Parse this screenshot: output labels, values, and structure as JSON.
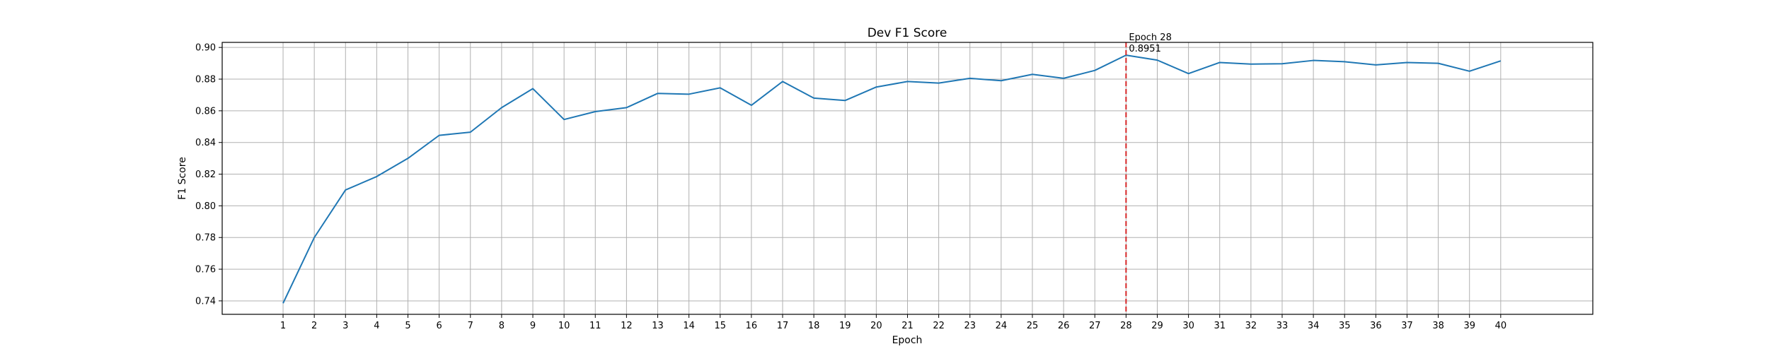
{
  "chart_data": {
    "type": "line",
    "title": "Dev F1 Score",
    "xlabel": "Epoch",
    "ylabel": "F1 Score",
    "x": [
      1,
      2,
      3,
      4,
      5,
      6,
      7,
      8,
      9,
      10,
      11,
      12,
      13,
      14,
      15,
      16,
      17,
      18,
      19,
      20,
      21,
      22,
      23,
      24,
      25,
      26,
      27,
      28,
      29,
      30,
      31,
      32,
      33,
      34,
      35,
      36,
      37,
      38,
      39,
      40
    ],
    "series": [
      {
        "color": "#1f77b4",
        "values": [
          0.7385,
          0.78,
          0.81,
          0.8185,
          0.83,
          0.8445,
          0.8465,
          0.862,
          0.874,
          0.8545,
          0.8595,
          0.862,
          0.871,
          0.8705,
          0.8745,
          0.8635,
          0.8785,
          0.868,
          0.8665,
          0.875,
          0.8785,
          0.8775,
          0.8805,
          0.879,
          0.883,
          0.8805,
          0.8855,
          0.8951,
          0.892,
          0.8835,
          0.8905,
          0.8895,
          0.8897,
          0.8918,
          0.891,
          0.889,
          0.8905,
          0.89,
          0.885,
          0.8915
        ]
      }
    ],
    "xlim": [
      -0.95,
      42.95
    ],
    "ylim": [
      0.7315,
      0.9032
    ],
    "yticks": [
      "0.74",
      "0.76",
      "0.78",
      "0.80",
      "0.82",
      "0.84",
      "0.86",
      "0.88",
      "0.90"
    ],
    "ytick_values": [
      0.74,
      0.76,
      0.78,
      0.8,
      0.82,
      0.84,
      0.86,
      0.88,
      0.9
    ],
    "grid": true,
    "legend": false,
    "marker": {
      "x": 28,
      "line_color": "#d62728",
      "line_style": "dashed",
      "label_epoch": "Epoch 28",
      "label_value": "0.8951"
    }
  }
}
